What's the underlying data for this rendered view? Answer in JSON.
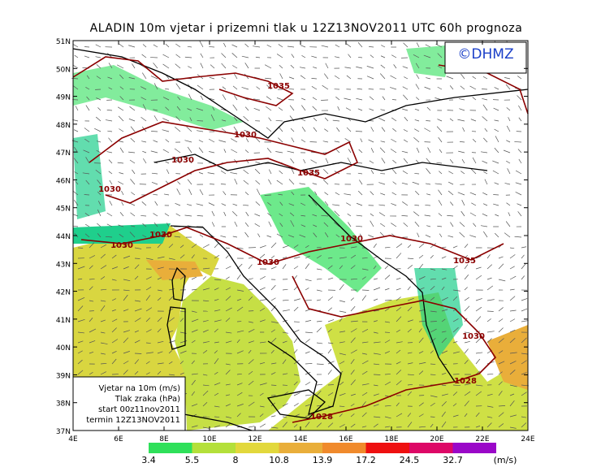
{
  "title": "ALADIN 10m vjetar i prizemni tlak u 12Z13NOV2011 UTC 60h prognoza",
  "logo": "©DHMZ",
  "lat_labels": [
    "51N",
    "50N",
    "49N",
    "48N",
    "47N",
    "46N",
    "45N",
    "44N",
    "43N",
    "42N",
    "41N",
    "40N",
    "39N",
    "38N",
    "37N"
  ],
  "lon_labels": [
    "4E",
    "6E",
    "8E",
    "10E",
    "12E",
    "14E",
    "16E",
    "18E",
    "20E",
    "22E",
    "24E"
  ],
  "isobar_labels": [
    "1035",
    "1030",
    "1030",
    "1030",
    "1035",
    "1030",
    "1030",
    "1030",
    "1030",
    "1035",
    "1030",
    "1028",
    "1028"
  ],
  "info_box": [
    "Vjetar na 10m (m/s)",
    "Tlak zraka (hPa)",
    "start 00z11nov2011",
    "termin 12Z13NOV2011"
  ],
  "colorbar": {
    "labels": [
      3.4,
      5.5,
      8,
      10.8,
      13.9,
      17.2,
      24.5,
      32.7
    ],
    "colors": [
      "#1fcf8c",
      "#2fe05a",
      "#b4e03a",
      "#e2d83c",
      "#e9ae3a",
      "#f08a2c",
      "#ee1010",
      "#dd0866",
      "#9a08c8"
    ],
    "unit": "(m/s)"
  }
}
